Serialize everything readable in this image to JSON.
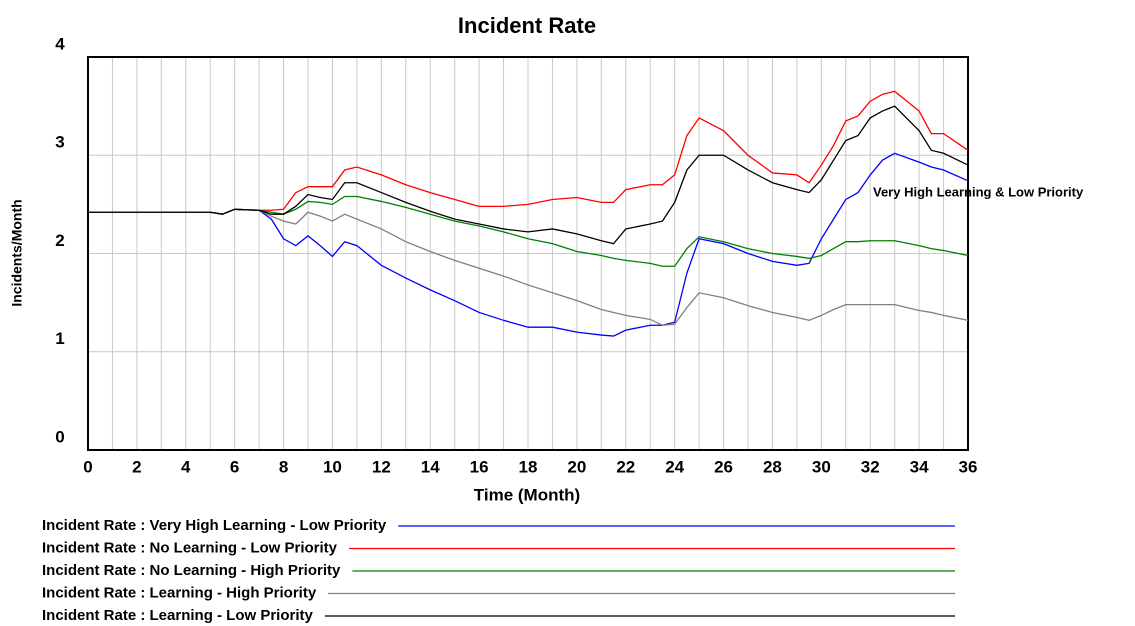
{
  "chart_data": {
    "type": "line",
    "title": "Incident Rate",
    "x_label": "Time (Month)",
    "y_label": "Incidents/Month",
    "annotation": "Very High Learning & Low Priority",
    "xlim": [
      0,
      36
    ],
    "ylim": [
      0,
      4
    ],
    "xticks": [
      0,
      2,
      4,
      6,
      8,
      10,
      12,
      14,
      16,
      18,
      20,
      22,
      24,
      26,
      28,
      30,
      32,
      34,
      36
    ],
    "x_minor_grid": [
      1,
      3,
      5,
      7,
      9,
      11,
      13,
      15,
      17,
      19,
      21,
      23,
      25,
      27,
      29,
      31,
      33,
      35
    ],
    "yticks": [
      0,
      1,
      2,
      3,
      4
    ],
    "grid": true,
    "x": [
      0,
      5,
      5.5,
      6,
      7,
      7.5,
      8,
      8.5,
      9,
      9.5,
      10,
      10.5,
      11,
      12,
      13,
      14,
      15,
      16,
      17,
      18,
      19,
      20,
      21,
      21.5,
      22,
      23,
      23.5,
      24,
      24.5,
      25,
      26,
      27,
      28,
      29,
      29.5,
      30,
      30.5,
      31,
      31.5,
      32,
      32.5,
      33,
      34,
      34.5,
      35,
      36
    ],
    "series": [
      {
        "name": "Incident Rate : Very High Learning - Low Priority",
        "color": "#0000ff",
        "values": [
          2.42,
          2.42,
          2.4,
          2.45,
          2.44,
          2.35,
          2.15,
          2.08,
          2.18,
          2.08,
          1.97,
          2.12,
          2.08,
          1.88,
          1.75,
          1.63,
          1.52,
          1.4,
          1.32,
          1.25,
          1.25,
          1.2,
          1.17,
          1.16,
          1.22,
          1.27,
          1.27,
          1.3,
          1.8,
          2.15,
          2.1,
          2.0,
          1.92,
          1.88,
          1.9,
          2.15,
          2.35,
          2.55,
          2.62,
          2.8,
          2.95,
          3.02,
          2.93,
          2.88,
          2.85,
          2.74
        ]
      },
      {
        "name": "Incident Rate : No Learning - Low Priority",
        "color": "#ff0000",
        "values": [
          2.42,
          2.42,
          2.4,
          2.45,
          2.44,
          2.44,
          2.45,
          2.62,
          2.68,
          2.68,
          2.68,
          2.85,
          2.88,
          2.8,
          2.7,
          2.62,
          2.55,
          2.48,
          2.48,
          2.5,
          2.55,
          2.57,
          2.52,
          2.52,
          2.65,
          2.7,
          2.7,
          2.8,
          3.2,
          3.38,
          3.25,
          3.0,
          2.82,
          2.8,
          2.72,
          2.9,
          3.1,
          3.35,
          3.4,
          3.55,
          3.62,
          3.65,
          3.45,
          3.22,
          3.22,
          3.05
        ]
      },
      {
        "name": "Incident Rate : No Learning - High Priority",
        "color": "#008000",
        "values": [
          2.42,
          2.42,
          2.4,
          2.45,
          2.44,
          2.42,
          2.4,
          2.45,
          2.53,
          2.52,
          2.5,
          2.58,
          2.58,
          2.53,
          2.47,
          2.4,
          2.33,
          2.28,
          2.22,
          2.15,
          2.1,
          2.02,
          1.98,
          1.95,
          1.93,
          1.9,
          1.87,
          1.87,
          2.05,
          2.17,
          2.12,
          2.05,
          2.0,
          1.97,
          1.95,
          1.98,
          2.05,
          2.12,
          2.12,
          2.13,
          2.13,
          2.13,
          2.08,
          2.05,
          2.03,
          1.98
        ]
      },
      {
        "name": "Incident Rate : Learning - High Priority",
        "color": "#808080",
        "values": [
          2.42,
          2.42,
          2.4,
          2.45,
          2.44,
          2.38,
          2.33,
          2.3,
          2.42,
          2.38,
          2.33,
          2.4,
          2.35,
          2.25,
          2.12,
          2.02,
          1.93,
          1.85,
          1.77,
          1.68,
          1.6,
          1.52,
          1.43,
          1.4,
          1.37,
          1.33,
          1.27,
          1.28,
          1.45,
          1.6,
          1.55,
          1.47,
          1.4,
          1.35,
          1.32,
          1.37,
          1.43,
          1.48,
          1.48,
          1.48,
          1.48,
          1.48,
          1.42,
          1.4,
          1.37,
          1.32
        ]
      },
      {
        "name": "Incident Rate : Learning - Low Priority",
        "color": "#000000",
        "values": [
          2.42,
          2.42,
          2.4,
          2.45,
          2.44,
          2.4,
          2.4,
          2.48,
          2.6,
          2.57,
          2.55,
          2.72,
          2.72,
          2.62,
          2.52,
          2.43,
          2.35,
          2.3,
          2.25,
          2.22,
          2.25,
          2.2,
          2.13,
          2.1,
          2.25,
          2.3,
          2.33,
          2.52,
          2.85,
          3.0,
          3.0,
          2.85,
          2.72,
          2.65,
          2.62,
          2.75,
          2.95,
          3.15,
          3.2,
          3.38,
          3.45,
          3.5,
          3.25,
          3.05,
          3.02,
          2.9
        ]
      }
    ]
  }
}
